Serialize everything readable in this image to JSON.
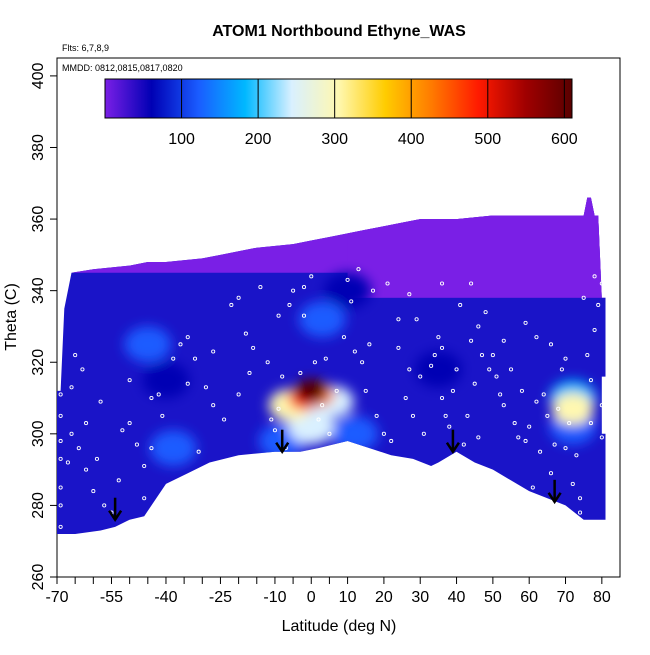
{
  "chart_data": {
    "type": "heatmap",
    "title": "ATOM1 Northbound Ethyne_WAS",
    "subtitle_flights": "Flts: 6,7,8,9",
    "subtitle_dates": "MMDD: 0812,0815,0817,0820",
    "xlabel": "Latitude (deg N)",
    "ylabel": "Theta (C)",
    "xlim": [
      -70,
      85
    ],
    "ylim": [
      260,
      405
    ],
    "x_ticks_labeled": [
      -70,
      -55,
      -40,
      -25,
      -10,
      0,
      10,
      20,
      30,
      40,
      50,
      60,
      70,
      80
    ],
    "x_tick_labels": [
      "-70",
      "-55",
      "-40",
      "-25",
      "-10",
      "0",
      "10",
      "20",
      "30",
      "40",
      "50",
      "60",
      "70",
      "80"
    ],
    "x_ticks_minor": [
      -65,
      -60,
      -50,
      -45,
      -35,
      -30,
      -20,
      -15,
      -5,
      5
    ],
    "y_ticks": [
      260,
      280,
      300,
      320,
      340,
      360,
      380,
      400
    ],
    "y_tick_labels": [
      "260",
      "280",
      "300",
      "320",
      "340",
      "360",
      "380",
      "400"
    ],
    "colorbar": {
      "min": 0,
      "max": 610,
      "ticks": [
        100,
        200,
        300,
        400,
        500,
        600
      ],
      "tick_labels": [
        "100",
        "200",
        "300",
        "400",
        "500",
        "600"
      ],
      "colors": [
        "#7a1fe6",
        "#0000b4",
        "#1a5cff",
        "#00b8ff",
        "#d9f0ff",
        "#fff8b0",
        "#ffcc00",
        "#ff7a00",
        "#ff1a00",
        "#a00000",
        "#5a0000"
      ]
    },
    "field_top_boundary": [
      [
        -70,
        312
      ],
      [
        -69,
        312
      ],
      [
        -68,
        335
      ],
      [
        -66,
        345
      ],
      [
        -60,
        346
      ],
      [
        -50,
        347
      ],
      [
        -45,
        348
      ],
      [
        -40,
        348
      ],
      [
        -30,
        349
      ],
      [
        -25,
        350
      ],
      [
        -20,
        351
      ],
      [
        -15,
        352
      ],
      [
        -5,
        353
      ],
      [
        0,
        354
      ],
      [
        5,
        355
      ],
      [
        10,
        356
      ],
      [
        15,
        357
      ],
      [
        20,
        358
      ],
      [
        25,
        359
      ],
      [
        30,
        360
      ],
      [
        40,
        360
      ],
      [
        50,
        361
      ],
      [
        60,
        361
      ],
      [
        70,
        361
      ],
      [
        75,
        361
      ],
      [
        76,
        366
      ],
      [
        77,
        366
      ],
      [
        78,
        361
      ],
      [
        79,
        361
      ],
      [
        80,
        338
      ],
      [
        81,
        338
      ],
      [
        81,
        316
      ],
      [
        80,
        316
      ],
      [
        80,
        300
      ],
      [
        81,
        300
      ]
    ],
    "field_bottom_boundary": [
      [
        -70,
        272
      ],
      [
        -65,
        272
      ],
      [
        -58,
        273
      ],
      [
        -54,
        274
      ],
      [
        -50,
        276
      ],
      [
        -46,
        277
      ],
      [
        -40,
        286
      ],
      [
        -34,
        289
      ],
      [
        -28,
        292
      ],
      [
        -20,
        294
      ],
      [
        -10,
        295
      ],
      [
        -3,
        295
      ],
      [
        2,
        296
      ],
      [
        10,
        298
      ],
      [
        16,
        296
      ],
      [
        22,
        294
      ],
      [
        28,
        293
      ],
      [
        33,
        291
      ],
      [
        35,
        292
      ],
      [
        40,
        295
      ],
      [
        45,
        292
      ],
      [
        50,
        290
      ],
      [
        55,
        287
      ],
      [
        60,
        284
      ],
      [
        65,
        282
      ],
      [
        70,
        280
      ],
      [
        75,
        276
      ],
      [
        81,
        276
      ]
    ],
    "hotspots": [
      {
        "lat": 0,
        "theta": 312,
        "value": 600
      },
      {
        "lat": -2,
        "theta": 310,
        "value": 480
      },
      {
        "lat": 2,
        "theta": 311,
        "value": 420
      },
      {
        "lat": -6,
        "theta": 308,
        "value": 300
      },
      {
        "lat": 6,
        "theta": 309,
        "value": 260
      },
      {
        "lat": 0,
        "theta": 302,
        "value": 230
      },
      {
        "lat": 72,
        "theta": 307,
        "value": 320
      },
      {
        "lat": 72,
        "theta": 310,
        "value": 200
      },
      {
        "lat": 72,
        "theta": 302,
        "value": 150
      },
      {
        "lat": -8,
        "theta": 298,
        "value": 150
      },
      {
        "lat": -45,
        "theta": 325,
        "value": 110
      },
      {
        "lat": 3,
        "theta": 332,
        "value": 120
      },
      {
        "lat": 12,
        "theta": 300,
        "value": 140
      },
      {
        "lat": -38,
        "theta": 296,
        "value": 95
      },
      {
        "lat": -40,
        "theta": 315,
        "value": 40
      },
      {
        "lat": 10,
        "theta": 340,
        "value": 40
      },
      {
        "lat": 35,
        "theta": 318,
        "value": 40
      }
    ],
    "arrows": [
      {
        "lat": -54,
        "theta": 276
      },
      {
        "lat": -8,
        "theta": 295
      },
      {
        "lat": 39,
        "theta": 295
      },
      {
        "lat": 67,
        "theta": 281
      }
    ],
    "sample_points": [
      [
        -69,
        311
      ],
      [
        -69,
        305
      ],
      [
        -69,
        298
      ],
      [
        -69,
        293
      ],
      [
        -69,
        285
      ],
      [
        -69,
        280
      ],
      [
        -69,
        274
      ],
      [
        -65,
        322
      ],
      [
        -63,
        318
      ],
      [
        -66,
        300
      ],
      [
        -64,
        296
      ],
      [
        -62,
        290
      ],
      [
        -60,
        284
      ],
      [
        -57,
        280
      ],
      [
        -55,
        278
      ],
      [
        -52,
        301
      ],
      [
        -50,
        303
      ],
      [
        -48,
        297
      ],
      [
        -46,
        282
      ],
      [
        -44,
        310
      ],
      [
        -42,
        311
      ],
      [
        -38,
        321
      ],
      [
        -36,
        325
      ],
      [
        -34,
        327
      ],
      [
        -32,
        321
      ],
      [
        -29,
        313
      ],
      [
        -27,
        308
      ],
      [
        -24,
        304
      ],
      [
        -22,
        336
      ],
      [
        -20,
        338
      ],
      [
        -18,
        328
      ],
      [
        -16,
        324
      ],
      [
        -14,
        341
      ],
      [
        -12,
        320
      ],
      [
        -11,
        304
      ],
      [
        -10,
        301
      ],
      [
        -8,
        316
      ],
      [
        -7,
        296
      ],
      [
        -6,
        336
      ],
      [
        -5,
        340
      ],
      [
        -3,
        317
      ],
      [
        -2,
        341
      ],
      [
        0,
        344
      ],
      [
        1,
        320
      ],
      [
        3,
        308
      ],
      [
        4,
        321
      ],
      [
        5,
        300
      ],
      [
        7,
        312
      ],
      [
        9,
        327
      ],
      [
        10,
        343
      ],
      [
        12,
        323
      ],
      [
        14,
        320
      ],
      [
        15,
        312
      ],
      [
        16,
        325
      ],
      [
        18,
        305
      ],
      [
        20,
        300
      ],
      [
        21,
        342
      ],
      [
        22,
        298
      ],
      [
        24,
        324
      ],
      [
        26,
        310
      ],
      [
        27,
        339
      ],
      [
        28,
        305
      ],
      [
        29,
        332
      ],
      [
        30,
        316
      ],
      [
        31,
        300
      ],
      [
        33,
        319
      ],
      [
        34,
        322
      ],
      [
        35,
        327
      ],
      [
        36,
        324
      ],
      [
        37,
        305
      ],
      [
        38,
        302
      ],
      [
        39,
        312
      ],
      [
        40,
        318
      ],
      [
        41,
        336
      ],
      [
        42,
        297
      ],
      [
        43,
        305
      ],
      [
        44,
        326
      ],
      [
        45,
        314
      ],
      [
        46,
        330
      ],
      [
        47,
        322
      ],
      [
        48,
        334
      ],
      [
        49,
        318
      ],
      [
        50,
        322
      ],
      [
        51,
        316
      ],
      [
        52,
        311
      ],
      [
        53,
        308
      ],
      [
        55,
        318
      ],
      [
        56,
        303
      ],
      [
        57,
        299
      ],
      [
        58,
        312
      ],
      [
        59,
        298
      ],
      [
        60,
        302
      ],
      [
        61,
        285
      ],
      [
        62,
        309
      ],
      [
        63,
        295
      ],
      [
        64,
        311
      ],
      [
        65,
        305
      ],
      [
        66,
        289
      ],
      [
        67,
        297
      ],
      [
        68,
        307
      ],
      [
        69,
        318
      ],
      [
        70,
        321
      ],
      [
        71,
        303
      ],
      [
        72,
        286
      ],
      [
        73,
        294
      ],
      [
        74,
        282
      ],
      [
        75,
        338
      ],
      [
        76,
        322
      ],
      [
        77,
        315
      ],
      [
        78,
        329
      ],
      [
        79,
        336
      ],
      [
        80,
        342
      ],
      [
        80,
        308
      ],
      [
        80,
        299
      ],
      [
        78,
        344
      ],
      [
        66,
        325
      ],
      [
        59,
        331
      ],
      [
        44,
        342
      ],
      [
        36,
        342
      ],
      [
        24,
        332
      ],
      [
        13,
        346
      ],
      [
        -2,
        333
      ],
      [
        -9,
        333
      ],
      [
        -17,
        317
      ],
      [
        -27,
        323
      ],
      [
        -34,
        314
      ],
      [
        -41,
        305
      ],
      [
        -46,
        291
      ],
      [
        -53,
        287
      ],
      [
        -59,
        293
      ],
      [
        -62,
        303
      ],
      [
        -66,
        313
      ],
      [
        -67,
        292
      ],
      [
        -58,
        309
      ],
      [
        -50,
        315
      ],
      [
        -44,
        296
      ],
      [
        -31,
        295
      ],
      [
        -20,
        311
      ],
      [
        -9,
        307
      ],
      [
        2,
        304
      ],
      [
        11,
        337
      ],
      [
        17,
        340
      ],
      [
        27,
        318
      ],
      [
        36,
        310
      ],
      [
        46,
        299
      ],
      [
        53,
        326
      ],
      [
        62,
        327
      ],
      [
        70,
        296
      ],
      [
        74,
        278
      ],
      [
        77,
        303
      ]
    ],
    "grid": false
  }
}
